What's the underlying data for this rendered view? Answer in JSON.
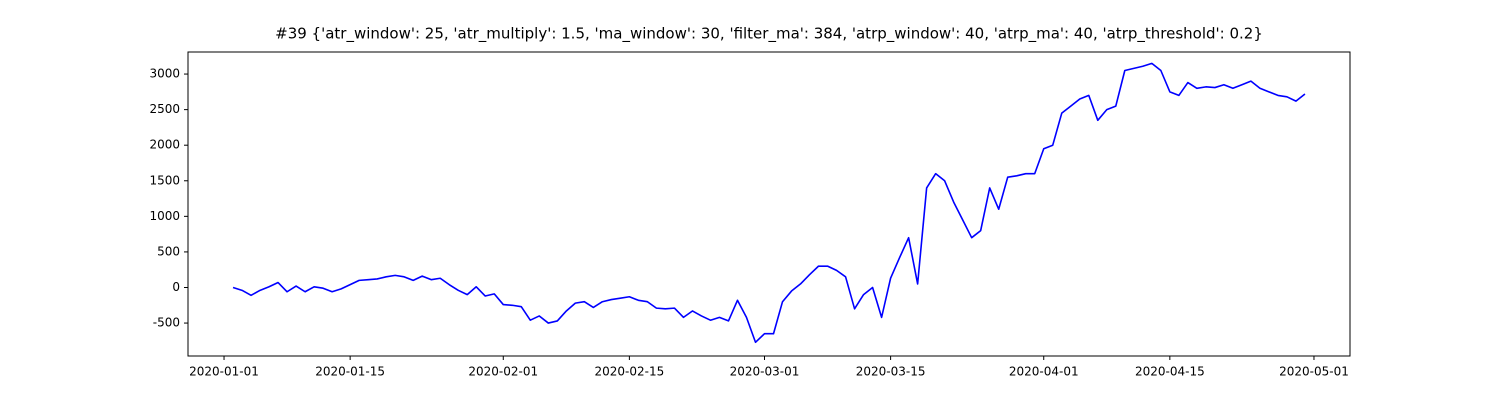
{
  "chart_data": {
    "type": "line",
    "title": "#39 {'atr_window': 25, 'atr_multiply': 1.5, 'ma_window': 30, 'filter_ma': 384, 'atrp_window': 40, 'atrp_ma': 40, 'atrp_threshold': 0.2}",
    "color": "#0000ff",
    "x": [
      "2020-01-02",
      "2020-01-03",
      "2020-01-04",
      "2020-01-05",
      "2020-01-06",
      "2020-01-07",
      "2020-01-08",
      "2020-01-09",
      "2020-01-10",
      "2020-01-11",
      "2020-01-12",
      "2020-01-13",
      "2020-01-14",
      "2020-01-15",
      "2020-01-16",
      "2020-01-17",
      "2020-01-18",
      "2020-01-19",
      "2020-01-20",
      "2020-01-21",
      "2020-01-22",
      "2020-01-23",
      "2020-01-24",
      "2020-01-25",
      "2020-01-26",
      "2020-01-27",
      "2020-01-28",
      "2020-01-29",
      "2020-01-30",
      "2020-01-31",
      "2020-02-01",
      "2020-02-02",
      "2020-02-03",
      "2020-02-04",
      "2020-02-05",
      "2020-02-06",
      "2020-02-07",
      "2020-02-08",
      "2020-02-09",
      "2020-02-10",
      "2020-02-11",
      "2020-02-12",
      "2020-02-13",
      "2020-02-14",
      "2020-02-15",
      "2020-02-16",
      "2020-02-17",
      "2020-02-18",
      "2020-02-19",
      "2020-02-20",
      "2020-02-21",
      "2020-02-22",
      "2020-02-23",
      "2020-02-24",
      "2020-02-25",
      "2020-02-26",
      "2020-02-27",
      "2020-02-28",
      "2020-02-29",
      "2020-03-01",
      "2020-03-02",
      "2020-03-03",
      "2020-03-04",
      "2020-03-05",
      "2020-03-06",
      "2020-03-07",
      "2020-03-08",
      "2020-03-09",
      "2020-03-10",
      "2020-03-11",
      "2020-03-12",
      "2020-03-13",
      "2020-03-14",
      "2020-03-15",
      "2020-03-16",
      "2020-03-17",
      "2020-03-18",
      "2020-03-19",
      "2020-03-20",
      "2020-03-21",
      "2020-03-22",
      "2020-03-23",
      "2020-03-24",
      "2020-03-25",
      "2020-03-26",
      "2020-03-27",
      "2020-03-28",
      "2020-03-29",
      "2020-03-30",
      "2020-03-31",
      "2020-04-01",
      "2020-04-02",
      "2020-04-03",
      "2020-04-04",
      "2020-04-05",
      "2020-04-06",
      "2020-04-07",
      "2020-04-08",
      "2020-04-09",
      "2020-04-10",
      "2020-04-11",
      "2020-04-12",
      "2020-04-13",
      "2020-04-14",
      "2020-04-15",
      "2020-04-16",
      "2020-04-17",
      "2020-04-18",
      "2020-04-19",
      "2020-04-20",
      "2020-04-21",
      "2020-04-22",
      "2020-04-23",
      "2020-04-24",
      "2020-04-25",
      "2020-04-26",
      "2020-04-27",
      "2020-04-28",
      "2020-04-29",
      "2020-04-30"
    ],
    "values": [
      0,
      -40,
      -110,
      -40,
      10,
      70,
      -60,
      20,
      -60,
      10,
      -10,
      -60,
      -20,
      40,
      100,
      110,
      120,
      150,
      170,
      150,
      100,
      160,
      110,
      130,
      40,
      -40,
      -100,
      10,
      -120,
      -90,
      -240,
      -250,
      -270,
      -460,
      -400,
      -500,
      -470,
      -330,
      -220,
      -200,
      -280,
      -200,
      -170,
      -150,
      -130,
      -180,
      -200,
      -290,
      -300,
      -290,
      -420,
      -330,
      -400,
      -460,
      -420,
      -470,
      -180,
      -420,
      -770,
      -650,
      -650,
      -200,
      -50,
      50,
      180,
      300,
      300,
      240,
      150,
      -300,
      -100,
      0,
      -420,
      130,
      420,
      700,
      50,
      1400,
      1600,
      1500,
      1200,
      950,
      700,
      800,
      1400,
      1100,
      1550,
      1570,
      1600,
      1600,
      1950,
      2000,
      2450,
      2550,
      2650,
      2700,
      2350,
      2500,
      2550,
      3050,
      3080,
      3110,
      3150,
      3050,
      2750,
      2700,
      2880,
      2800,
      2820,
      2810,
      2850,
      2800,
      2850,
      2900,
      2800,
      2750,
      2700,
      2680,
      2620,
      2720
    ],
    "xlim": [
      "2019-12-28",
      "2020-05-05"
    ],
    "xticks": [
      "2020-01-01",
      "2020-01-15",
      "2020-02-01",
      "2020-02-15",
      "2020-03-01",
      "2020-03-15",
      "2020-04-01",
      "2020-04-15",
      "2020-05-01"
    ],
    "ylim": [
      -963,
      3310
    ],
    "yticks": [
      -500,
      0,
      500,
      1000,
      1500,
      2000,
      2500,
      3000
    ]
  }
}
